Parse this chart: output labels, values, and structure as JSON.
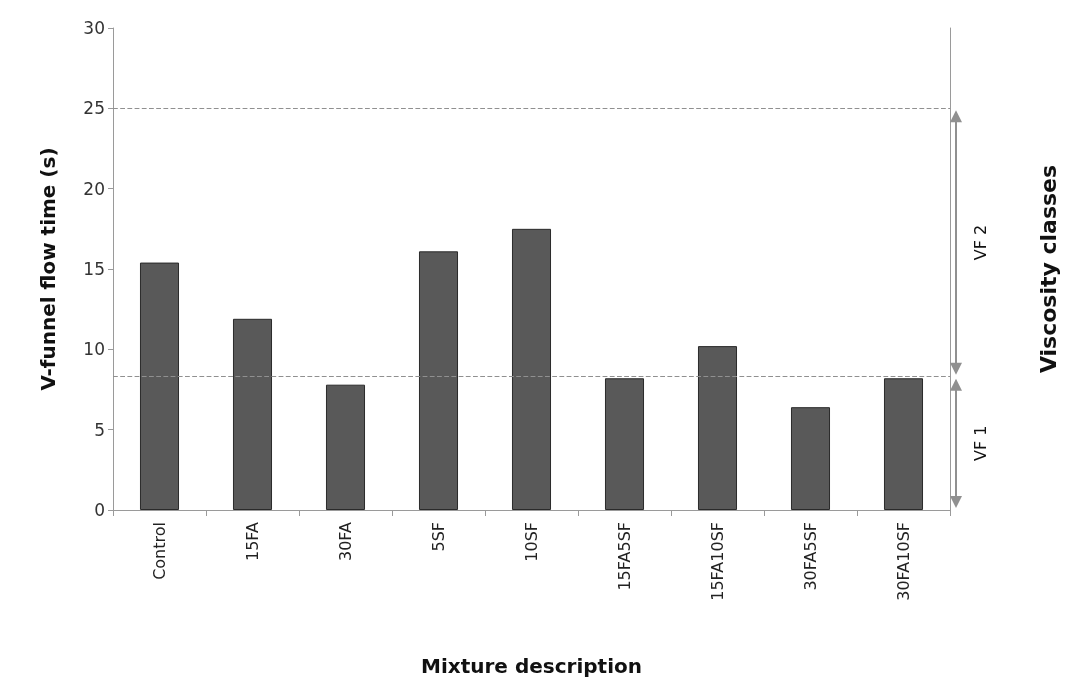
{
  "chart_data": {
    "type": "bar",
    "xlabel": "Mixture description",
    "ylabel": "V-funnel flow time (s)",
    "categories": [
      "Control",
      "15FA",
      "30FA",
      "5SF",
      "10SF",
      "15FA5SF",
      "15FA10SF",
      "30FA5SF",
      "30FA10SF"
    ],
    "series": [
      {
        "color": "#595959",
        "values": [
          15.4,
          11.9,
          7.8,
          16.1,
          17.5,
          8.2,
          10.2,
          6.4,
          8.2
        ]
      }
    ],
    "ylim": [
      0,
      30
    ],
    "yticks": [
      0,
      5,
      10,
      15,
      20,
      25,
      30
    ],
    "ref_lines": [
      {
        "axis": "y",
        "value": 25,
        "color": "#909090",
        "line_style": "dashed"
      },
      {
        "axis": "y",
        "value": 8.3,
        "color": "#909090",
        "line_style": "dashed"
      }
    ],
    "annotations": [
      "VF 2",
      "VF 1",
      "Viscosity classes"
    ],
    "grid": false
  }
}
